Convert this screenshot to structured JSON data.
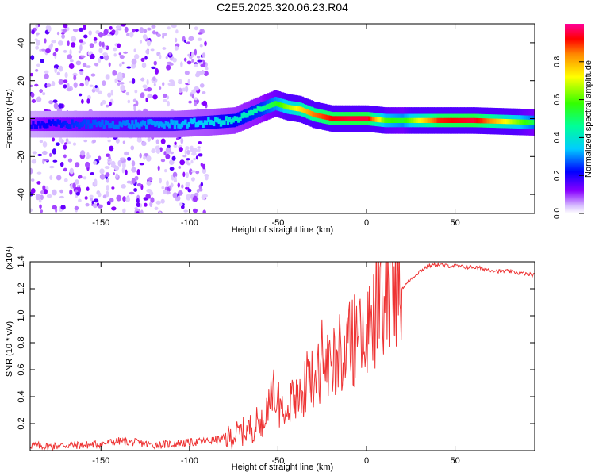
{
  "title": "C2E5.2025.320.06.23.R04",
  "chart_data": [
    {
      "type": "heatmap",
      "xlabel": "Height of straight line (km)",
      "ylabel": "Frequency (Hz)",
      "xlim": [
        -190,
        95
      ],
      "ylim": [
        -50,
        50
      ],
      "xticks": [
        -150,
        -100,
        -50,
        0,
        50
      ],
      "yticks": [
        -40,
        -20,
        0,
        20,
        40
      ],
      "colorbar": {
        "label": "Normalized spectral amplitude",
        "range": [
          0,
          1
        ],
        "ticks": [
          0.0,
          0.2,
          0.4,
          0.6,
          0.8
        ],
        "colormap": "rainbow"
      },
      "ridge": {
        "x": [
          -190,
          -150,
          -110,
          -90,
          -75,
          -60,
          -52,
          -45,
          -38,
          -30,
          -20,
          -10,
          0,
          10,
          20,
          40,
          60,
          95
        ],
        "freq": [
          -3,
          -3,
          -3,
          -2,
          -1,
          5,
          8,
          6,
          5,
          2,
          0,
          0,
          0,
          -1,
          -1,
          -1,
          -1,
          -2
        ],
        "amplitude": [
          0.2,
          0.28,
          0.32,
          0.35,
          0.4,
          0.45,
          0.55,
          0.65,
          0.75,
          0.85,
          0.92,
          0.95,
          0.95,
          0.6,
          0.55,
          0.9,
          0.95,
          0.5
        ]
      },
      "scatter_region": {
        "x_from": -190,
        "x_to": -90,
        "amplitude": "low"
      }
    },
    {
      "type": "line",
      "xlabel": "Height of straight line (km)",
      "ylabel": "SNR (10 * v/v)",
      "exponent_label": "(x10⁴)",
      "xlim": [
        -190,
        95
      ],
      "ylim": [
        0,
        1.4
      ],
      "xticks": [
        -150,
        -100,
        -50,
        0,
        50
      ],
      "yticks": [
        0.2,
        0.4,
        0.6,
        0.8,
        1.0,
        1.2,
        1.4
      ],
      "series": [
        {
          "name": "SNR",
          "color": "#ee3333",
          "x": [
            -190,
            -180,
            -170,
            -160,
            -150,
            -140,
            -130,
            -120,
            -110,
            -100,
            -90,
            -80,
            -75,
            -70,
            -65,
            -60,
            -55,
            -52,
            -50,
            -47,
            -45,
            -40,
            -35,
            -30,
            -25,
            -20,
            -15,
            -10,
            -5,
            0,
            5,
            10,
            15,
            20,
            25,
            30,
            35,
            40,
            45,
            50,
            55,
            60,
            65,
            70,
            75,
            80,
            85,
            90,
            95
          ],
          "y": [
            0.04,
            0.03,
            0.04,
            0.04,
            0.05,
            0.07,
            0.06,
            0.04,
            0.05,
            0.06,
            0.07,
            0.09,
            0.11,
            0.14,
            0.17,
            0.22,
            0.3,
            0.45,
            0.38,
            0.28,
            0.3,
            0.37,
            0.45,
            0.53,
            0.6,
            0.66,
            0.73,
            0.78,
            0.85,
            0.9,
            0.97,
            1.04,
            1.12,
            1.2,
            1.27,
            1.33,
            1.37,
            1.38,
            1.37,
            1.37,
            1.36,
            1.36,
            1.35,
            1.34,
            1.33,
            1.33,
            1.32,
            1.31,
            1.3
          ]
        }
      ]
    }
  ]
}
